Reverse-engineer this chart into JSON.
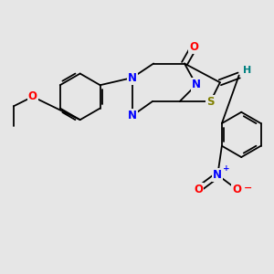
{
  "background": "#e6e6e6",
  "figsize": [
    3.0,
    3.0
  ],
  "dpi": 100,
  "bond_color": "#000000",
  "n_color": "#0000FF",
  "s_color": "#808000",
  "o_color": "#FF0000",
  "h_color": "#008080",
  "xlim": [
    -1.15,
    1.15
  ],
  "ylim": [
    -0.65,
    1.05
  ]
}
